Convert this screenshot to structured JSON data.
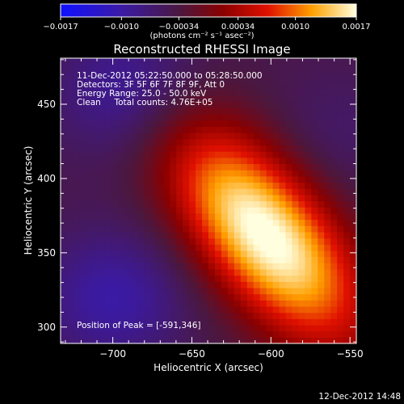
{
  "chart_data": {
    "type": "heatmap",
    "title": "Reconstructed RHESSI Image",
    "xlabel": "Heliocentric X (arcsec)",
    "ylabel": "Heliocentric Y (arcsec)",
    "xlim": [
      -733,
      -546
    ],
    "ylim": [
      289,
      481
    ],
    "x_ticks": [
      -700,
      -650,
      -600,
      -550
    ],
    "x_tick_labels": [
      "−700",
      "−650",
      "−600",
      "−550"
    ],
    "y_ticks": [
      300,
      350,
      400,
      450
    ],
    "y_tick_labels": [
      "300",
      "350",
      "400",
      "450"
    ],
    "colorbar": {
      "range": [
        -0.0017,
        0.0017
      ],
      "ticks": [
        -0.0017,
        -0.001,
        -0.00034,
        0.00034,
        0.001,
        0.0017
      ],
      "tick_labels": [
        "−0.0017",
        "−0.0010",
        "−0.00034",
        "0.00034",
        "0.0010",
        "0.0017"
      ],
      "units_label": "(photons cm⁻² s⁻¹ asec⁻²)"
    },
    "annotations": {
      "time_range": "11-Dec-2012 05:22:50.000 to 05:28:50.000",
      "detectors": "Detectors: 3F 5F 6F 7F 8F 9F, Att 0",
      "energy": "Energy Range: 25.0 - 50.0 keV",
      "clean_counts": "Clean     Total counts: 4.76E+05",
      "peak": "Position of Peak = [-591,346]"
    },
    "peak_position": [
      -591,
      346
    ],
    "intensity_features": [
      {
        "x": -591,
        "y": 346,
        "value": 0.0017
      },
      {
        "x": -640,
        "y": 410,
        "value": 0.001
      },
      {
        "x": -690,
        "y": 460,
        "value": -0.001
      },
      {
        "x": -700,
        "y": 320,
        "value": -0.001
      },
      {
        "x": -560,
        "y": 430,
        "value": -0.0006
      }
    ]
  },
  "footer": {
    "date": "12-Dec-2012 14:48"
  }
}
